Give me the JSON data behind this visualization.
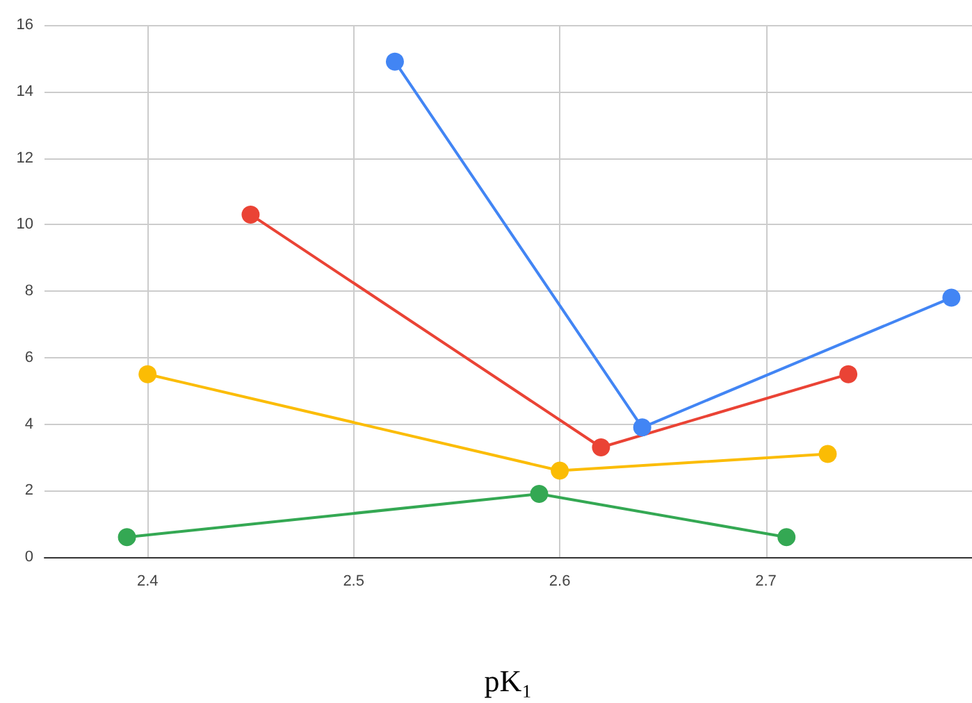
{
  "chart_data": {
    "type": "line",
    "xlabel": "pK₁",
    "xlim": [
      2.35,
      2.8
    ],
    "xticks": [
      2.4,
      2.5,
      2.6,
      2.7
    ],
    "ylim": [
      0,
      16
    ],
    "yticks": [
      0,
      2,
      4,
      6,
      8,
      10,
      12,
      14,
      16
    ],
    "grid": true,
    "marker": "circle",
    "line_style": "solid",
    "series": [
      {
        "color": "#4285f4",
        "x": [
          2.52,
          2.64,
          2.79
        ],
        "values": [
          14.9,
          3.9,
          7.8
        ]
      },
      {
        "color": "#ea4335",
        "x": [
          2.45,
          2.62,
          2.74
        ],
        "values": [
          10.3,
          3.3,
          5.5
        ]
      },
      {
        "color": "#fbbc04",
        "x": [
          2.4,
          2.6,
          2.73
        ],
        "values": [
          5.5,
          2.6,
          3.1
        ]
      },
      {
        "color": "#34a853",
        "x": [
          2.39,
          2.59,
          2.71
        ],
        "values": [
          0.6,
          1.9,
          0.6
        ]
      }
    ]
  }
}
